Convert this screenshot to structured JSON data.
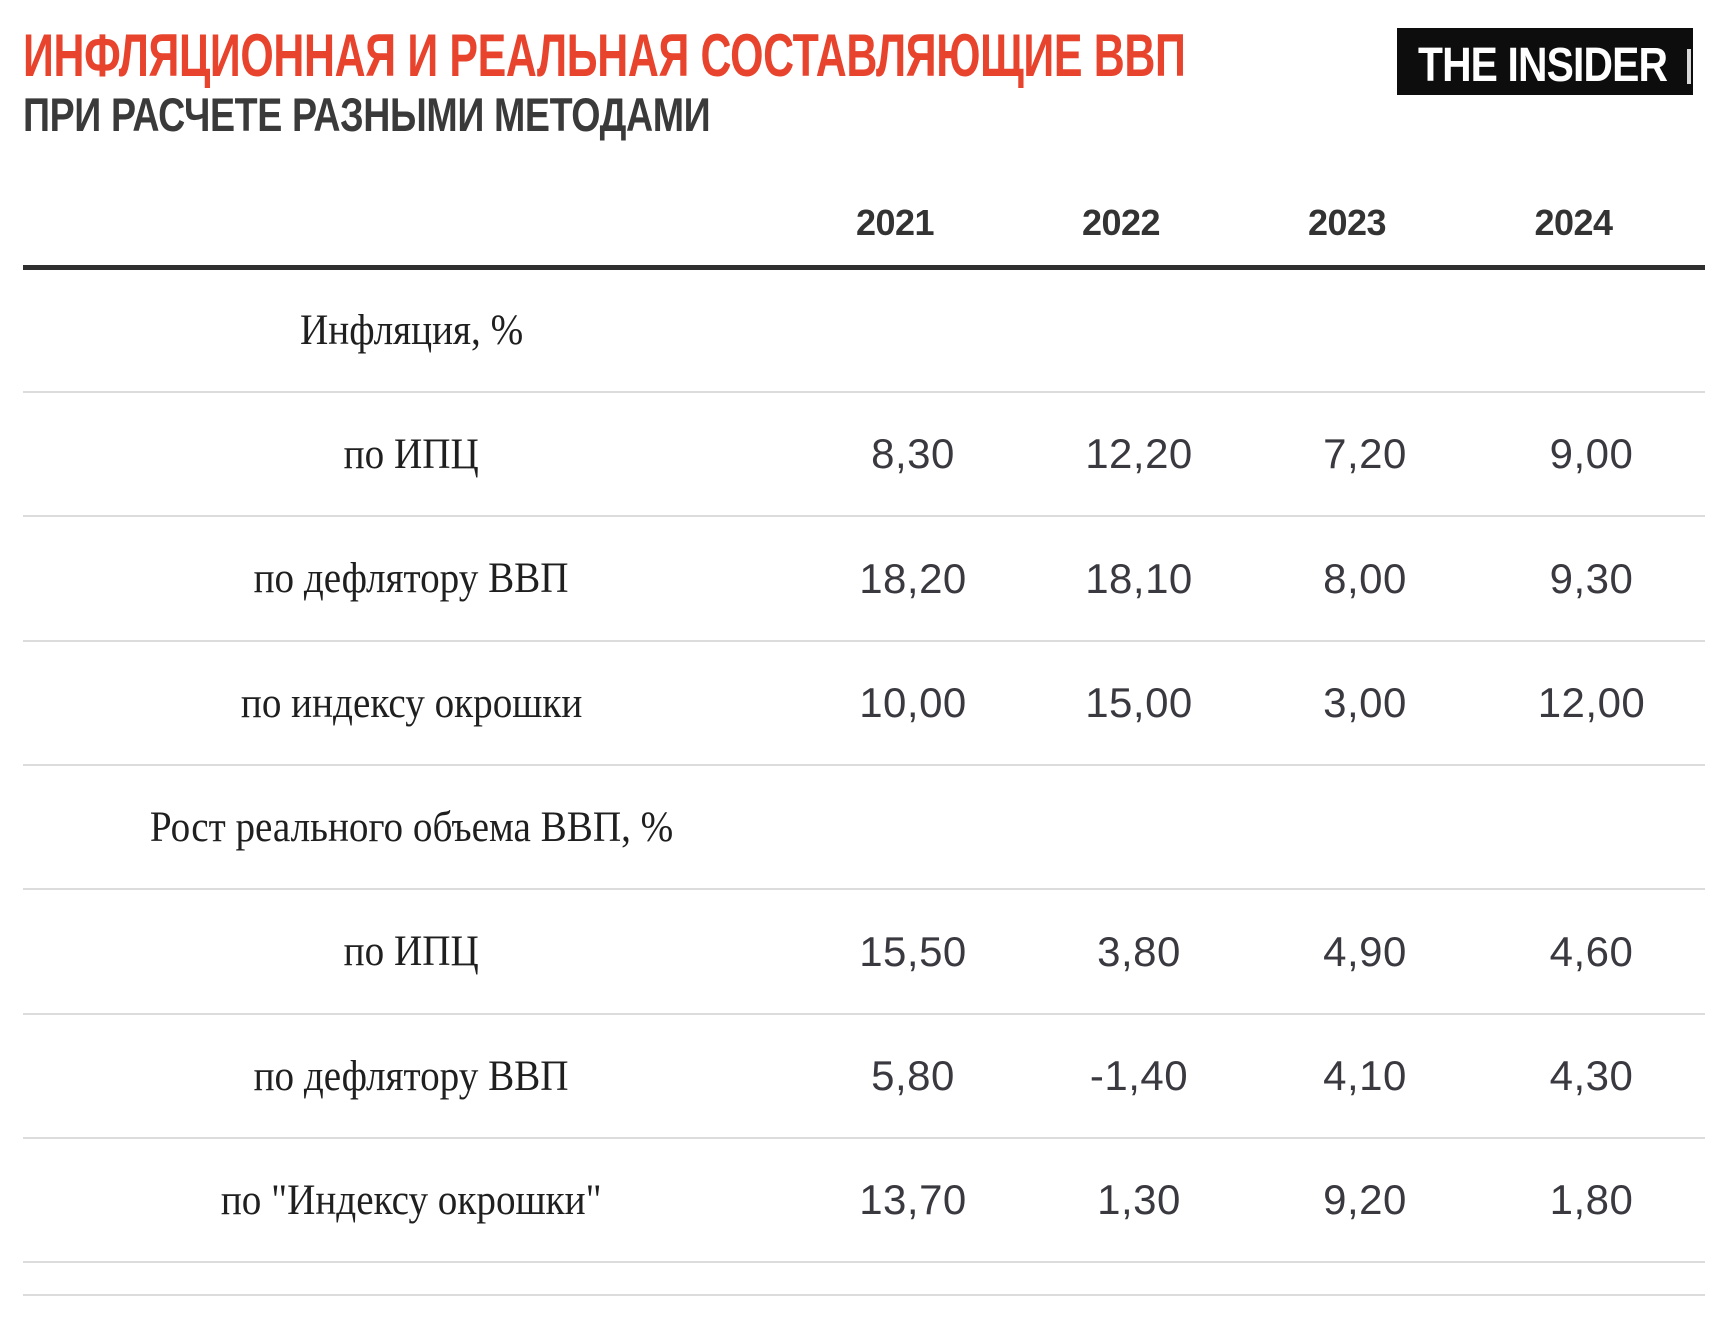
{
  "header": {
    "title": "ИНФЛЯЦИОННАЯ И РЕАЛЬНАЯ СОСТАВЛЯЮЩИЕ ВВП",
    "subtitle": "ПРИ РАСЧЕТЕ РАЗНЫМИ МЕТОДАМИ",
    "title_color": "#e8432d",
    "logo_text": "THE INSIDER"
  },
  "chart_data": {
    "type": "table",
    "columns": [
      "2021",
      "2022",
      "2023",
      "2024"
    ],
    "sections": [
      {
        "label": "Инфляция, %",
        "rows": [
          {
            "label": "по ИПЦ",
            "values": [
              "8,30",
              "12,20",
              "7,20",
              "9,00"
            ]
          },
          {
            "label": "по дефлятору ВВП",
            "values": [
              "18,20",
              "18,10",
              "8,00",
              "9,30"
            ]
          },
          {
            "label": "по индексу окрошки",
            "values": [
              "10,00",
              "15,00",
              "3,00",
              "12,00"
            ]
          }
        ]
      },
      {
        "label": "Рост реального объема ВВП, %",
        "rows": [
          {
            "label": "по ИПЦ",
            "values": [
              "15,50",
              "3,80",
              "4,90",
              "4,60"
            ]
          },
          {
            "label": "по дефлятору ВВП",
            "values": [
              "5,80",
              "-1,40",
              "4,10",
              "4,30"
            ]
          },
          {
            "label": "по \"Индексу окрошки\"",
            "values": [
              "13,70",
              "1,30",
              "9,20",
              "1,80"
            ]
          }
        ]
      }
    ]
  }
}
